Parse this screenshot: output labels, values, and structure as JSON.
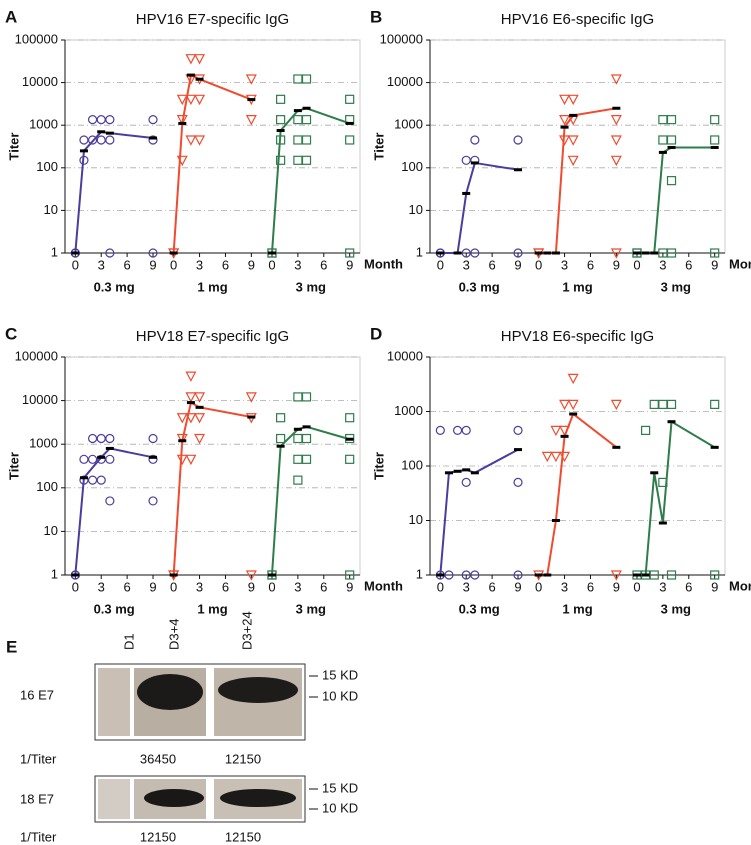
{
  "chart_data": [
    {
      "type": "scatter",
      "label": "A",
      "title": "HPV16 E7-specific IgG",
      "ylabel": "Titer",
      "xlabel": "Month",
      "log_y": true,
      "ylim": [
        1,
        100000
      ],
      "yticks": [
        1,
        10,
        100,
        1000,
        10000,
        100000
      ],
      "xlim": [
        -0.5,
        9.5
      ],
      "xticks": [
        0,
        3,
        6,
        9
      ],
      "grid": true,
      "groups": [
        {
          "name": "0.3 mg",
          "color": "#4b3c9e",
          "marker": "circle",
          "line": {
            "x": [
              0,
              1,
              3,
              4,
              9
            ],
            "values": [
              1,
              250,
              700,
              650,
              500
            ]
          },
          "points": [
            {
              "x": 0,
              "values": [
                1,
                1
              ]
            },
            {
              "x": 1,
              "values": [
                150,
                450
              ]
            },
            {
              "x": 2,
              "values": [
                450,
                1350
              ]
            },
            {
              "x": 3,
              "values": [
                450,
                1350
              ]
            },
            {
              "x": 4,
              "values": [
                450,
                1350,
                1
              ]
            },
            {
              "x": 9,
              "values": [
                450,
                1350,
                1
              ]
            }
          ]
        },
        {
          "name": "1 mg",
          "color": "#f04b2e",
          "marker": "triangle",
          "line": {
            "x": [
              0,
              1,
              2,
              3,
              9
            ],
            "values": [
              1,
              1100,
              15000,
              12000,
              4000
            ]
          },
          "points": [
            {
              "x": 0,
              "values": [
                1,
                1
              ]
            },
            {
              "x": 1,
              "values": [
                150,
                1350,
                4050
              ]
            },
            {
              "x": 2,
              "values": [
                450,
                4050,
                12150,
                36450
              ]
            },
            {
              "x": 3,
              "values": [
                450,
                4050,
                12150,
                36450
              ]
            },
            {
              "x": 9,
              "values": [
                1350,
                4050,
                12150
              ]
            }
          ]
        },
        {
          "name": "3 mg",
          "color": "#2e7d4b",
          "marker": "square",
          "line": {
            "x": [
              0,
              1,
              3,
              4,
              9
            ],
            "values": [
              1,
              750,
              2200,
              2500,
              1100
            ]
          },
          "points": [
            {
              "x": 0,
              "values": [
                1,
                1
              ]
            },
            {
              "x": 1,
              "values": [
                150,
                450,
                1350,
                4050
              ]
            },
            {
              "x": 3,
              "values": [
                150,
                450,
                1350,
                12150
              ]
            },
            {
              "x": 4,
              "values": [
                150,
                450,
                1350,
                12150
              ]
            },
            {
              "x": 9,
              "values": [
                1,
                450,
                1350,
                4050
              ]
            }
          ]
        }
      ]
    },
    {
      "type": "scatter",
      "label": "B",
      "title": "HPV16 E6-specific IgG",
      "ylabel": "Titer",
      "xlabel": "Month",
      "log_y": true,
      "ylim": [
        1,
        100000
      ],
      "yticks": [
        1,
        10,
        100,
        1000,
        10000,
        100000
      ],
      "xlim": [
        -0.5,
        9.5
      ],
      "xticks": [
        0,
        3,
        6,
        9
      ],
      "grid": true,
      "groups": [
        {
          "name": "0.3 mg",
          "color": "#4b3c9e",
          "marker": "circle",
          "line": {
            "x": [
              0,
              2,
              3,
              4,
              9
            ],
            "values": [
              1,
              1,
              25,
              130,
              90
            ]
          },
          "points": [
            {
              "x": 0,
              "values": [
                1,
                1
              ]
            },
            {
              "x": 3,
              "values": [
                150,
                1
              ]
            },
            {
              "x": 4,
              "values": [
                150,
                450,
                1
              ]
            },
            {
              "x": 9,
              "values": [
                450,
                1
              ]
            }
          ]
        },
        {
          "name": "1 mg",
          "color": "#f04b2e",
          "marker": "triangle",
          "line": {
            "x": [
              0,
              1,
              2,
              3,
              4,
              9
            ],
            "values": [
              1,
              1,
              1,
              900,
              1700,
              2500
            ]
          },
          "points": [
            {
              "x": 0,
              "values": [
                1,
                1
              ]
            },
            {
              "x": 3,
              "values": [
                450,
                1350,
                4050
              ]
            },
            {
              "x": 4,
              "values": [
                150,
                450,
                1350,
                4050
              ]
            },
            {
              "x": 9,
              "values": [
                150,
                450,
                1350,
                12150,
                1
              ]
            }
          ]
        },
        {
          "name": "3 mg",
          "color": "#2e7d4b",
          "marker": "square",
          "line": {
            "x": [
              0,
              1,
              2,
              3,
              4,
              9
            ],
            "values": [
              1,
              1,
              1,
              230,
              300,
              300
            ]
          },
          "points": [
            {
              "x": 0,
              "values": [
                1,
                1
              ]
            },
            {
              "x": 3,
              "values": [
                450,
                1350,
                1
              ]
            },
            {
              "x": 4,
              "values": [
                50,
                450,
                1350,
                1
              ]
            },
            {
              "x": 9,
              "values": [
                450,
                1350,
                1
              ]
            }
          ]
        }
      ]
    },
    {
      "type": "scatter",
      "label": "C",
      "title": "HPV18 E7-specific IgG",
      "ylabel": "Titer",
      "xlabel": "Month",
      "log_y": true,
      "ylim": [
        1,
        100000
      ],
      "yticks": [
        1,
        10,
        100,
        1000,
        10000,
        100000
      ],
      "xlim": [
        -0.5,
        9.5
      ],
      "xticks": [
        0,
        3,
        6,
        9
      ],
      "grid": true,
      "groups": [
        {
          "name": "0.3 mg",
          "color": "#4b3c9e",
          "marker": "circle",
          "line": {
            "x": [
              0,
              1,
              3,
              4,
              9
            ],
            "values": [
              1,
              170,
              500,
              800,
              500
            ]
          },
          "points": [
            {
              "x": 0,
              "values": [
                1,
                1
              ]
            },
            {
              "x": 1,
              "values": [
                150,
                450
              ]
            },
            {
              "x": 2,
              "values": [
                150,
                450,
                1350
              ]
            },
            {
              "x": 3,
              "values": [
                150,
                450,
                1350
              ]
            },
            {
              "x": 4,
              "values": [
                50,
                450,
                1350
              ]
            },
            {
              "x": 9,
              "values": [
                50,
                450,
                1350
              ]
            }
          ]
        },
        {
          "name": "1 mg",
          "color": "#f04b2e",
          "marker": "triangle",
          "line": {
            "x": [
              0,
              1,
              2,
              3,
              9
            ],
            "values": [
              1,
              1200,
              9000,
              7000,
              4200
            ]
          },
          "points": [
            {
              "x": 0,
              "values": [
                1,
                1
              ]
            },
            {
              "x": 1,
              "values": [
                450,
                1350,
                4050
              ]
            },
            {
              "x": 2,
              "values": [
                450,
                4050,
                12150,
                36450
              ]
            },
            {
              "x": 3,
              "values": [
                1350,
                4050,
                12150
              ]
            },
            {
              "x": 9,
              "values": [
                1,
                4050,
                12150
              ]
            }
          ]
        },
        {
          "name": "3 mg",
          "color": "#2e7d4b",
          "marker": "square",
          "line": {
            "x": [
              0,
              1,
              3,
              4,
              9
            ],
            "values": [
              1,
              900,
              2200,
              2500,
              1300
            ]
          },
          "points": [
            {
              "x": 0,
              "values": [
                1,
                1
              ]
            },
            {
              "x": 1,
              "values": [
                1350,
                4050
              ]
            },
            {
              "x": 3,
              "values": [
                150,
                450,
                1350,
                12150
              ]
            },
            {
              "x": 4,
              "values": [
                450,
                1350,
                12150
              ]
            },
            {
              "x": 9,
              "values": [
                1,
                450,
                1350,
                4050
              ]
            }
          ]
        }
      ]
    },
    {
      "type": "scatter",
      "label": "D",
      "title": "HPV18 E6-specific IgG",
      "ylabel": "Titer",
      "xlabel": "Month",
      "log_y": true,
      "ylim": [
        1,
        10000
      ],
      "yticks": [
        1,
        10,
        100,
        1000,
        10000
      ],
      "xlim": [
        -0.5,
        9.5
      ],
      "xticks": [
        0,
        3,
        6,
        9
      ],
      "grid": true,
      "groups": [
        {
          "name": "0.3 mg",
          "color": "#4b3c9e",
          "marker": "circle",
          "line": {
            "x": [
              0,
              1,
              2,
              3,
              4,
              9
            ],
            "values": [
              1,
              75,
              80,
              85,
              75,
              200
            ]
          },
          "points": [
            {
              "x": 0,
              "values": [
                1,
                450
              ]
            },
            {
              "x": 1,
              "values": [
                1
              ]
            },
            {
              "x": 2,
              "values": [
                450
              ]
            },
            {
              "x": 3,
              "values": [
                50,
                450,
                1
              ]
            },
            {
              "x": 4,
              "values": [
                1
              ]
            },
            {
              "x": 9,
              "values": [
                50,
                450,
                1
              ]
            }
          ]
        },
        {
          "name": "1 mg",
          "color": "#f04b2e",
          "marker": "triangle",
          "line": {
            "x": [
              0,
              1,
              2,
              3,
              4,
              9
            ],
            "values": [
              1,
              1,
              10,
              350,
              900,
              220
            ]
          },
          "points": [
            {
              "x": 0,
              "values": [
                1
              ]
            },
            {
              "x": 1,
              "values": [
                150
              ]
            },
            {
              "x": 2,
              "values": [
                150,
                450
              ]
            },
            {
              "x": 3,
              "values": [
                150,
                450,
                1350
              ]
            },
            {
              "x": 4,
              "values": [
                1350,
                4050
              ]
            },
            {
              "x": 9,
              "values": [
                1,
                1350
              ]
            }
          ]
        },
        {
          "name": "3 mg",
          "color": "#2e7d4b",
          "marker": "square",
          "line": {
            "x": [
              0,
              1,
              2,
              3,
              4,
              9
            ],
            "values": [
              1,
              1,
              75,
              9,
              650,
              220
            ]
          },
          "points": [
            {
              "x": 0,
              "values": [
                1
              ]
            },
            {
              "x": 1,
              "values": [
                450,
                1
              ]
            },
            {
              "x": 2,
              "values": [
                1350,
                1
              ]
            },
            {
              "x": 3,
              "values": [
                50,
                1350
              ]
            },
            {
              "x": 4,
              "values": [
                1350,
                1
              ]
            },
            {
              "x": 9,
              "values": [
                1350,
                1
              ]
            }
          ]
        }
      ]
    }
  ],
  "blot": {
    "label": "E",
    "lanes": [
      "D1",
      "D3+4",
      "D3+24"
    ],
    "markers": [
      "15 KD",
      "10 KD"
    ],
    "titer_label": "1/Titer",
    "rows": [
      {
        "name": "16 E7",
        "titers": [
          36450,
          12150
        ]
      },
      {
        "name": "18 E7",
        "titers": [
          12150,
          12150
        ]
      }
    ]
  }
}
